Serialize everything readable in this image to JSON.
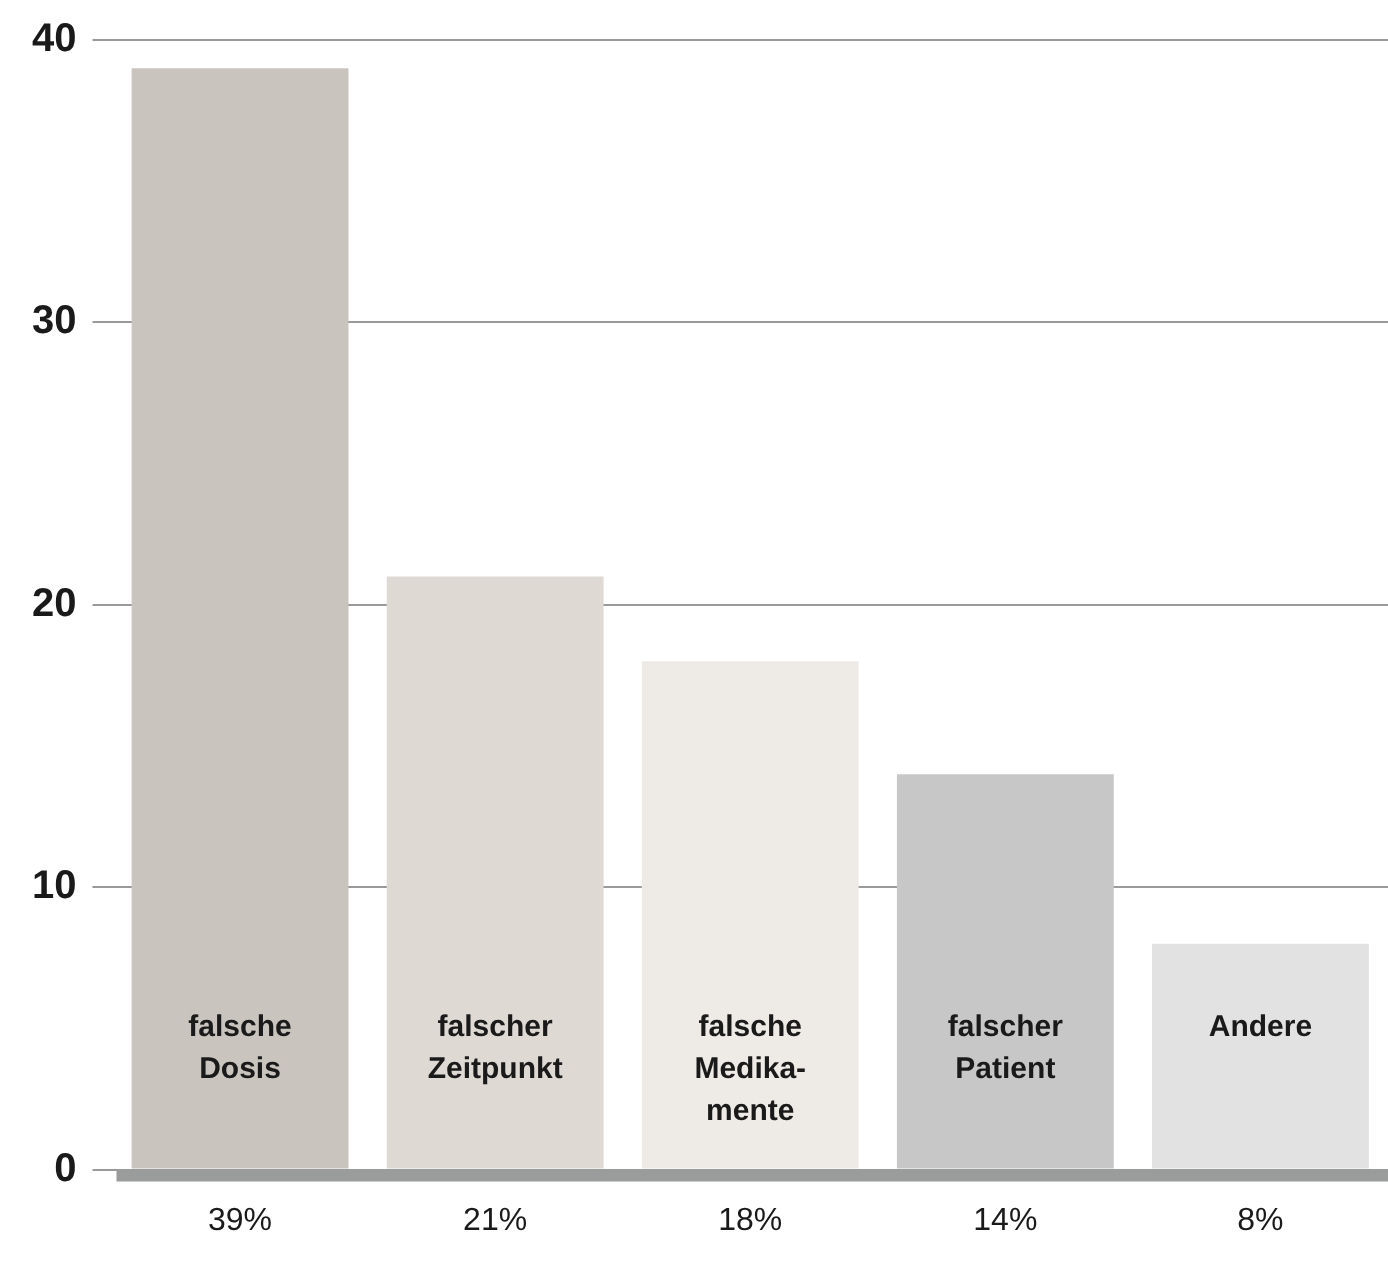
{
  "chart_data": {
    "type": "bar",
    "categories": [
      "falsche\nDosis",
      "falscher\nZeitpunkt",
      "falsche\nMedika-\nmente",
      "falscher\nPatient",
      "Andere"
    ],
    "values": [
      39,
      21,
      18,
      14,
      8
    ],
    "value_labels": [
      "39%",
      "21%",
      "18%",
      "14%",
      "8%"
    ],
    "colors": [
      "#c9c4be",
      "#ded9d3",
      "#eeebe6",
      "#c6c7c6",
      "#e2e2e2"
    ],
    "ylim": [
      0,
      40
    ],
    "yticks": [
      0,
      10,
      20,
      30,
      40
    ],
    "grid": "y",
    "legend": false
  }
}
